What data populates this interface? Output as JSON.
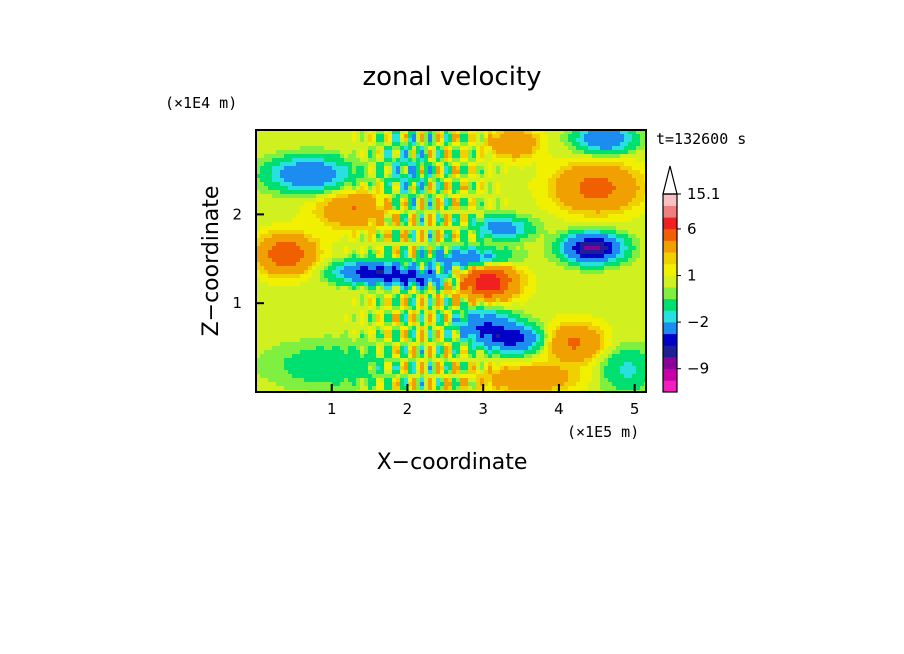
{
  "chart_data": {
    "type": "heatmap",
    "title": "zonal velocity",
    "xlabel": "X−coordinate",
    "ylabel": "Z−coordinate",
    "x_scale_label": "(×1E5 m)",
    "y_scale_label": "(×1E4 m)",
    "time_label": "t=132600 s",
    "xlim": [
      0,
      5.15
    ],
    "ylim": [
      0,
      2.95
    ],
    "x_ticks": [
      1,
      2,
      3,
      4,
      5
    ],
    "x_tick_labels": [
      "1",
      "2",
      "3",
      "4",
      "5"
    ],
    "y_ticks": [
      1,
      2
    ],
    "y_tick_labels": [
      "1",
      "2"
    ],
    "colorbar": {
      "levels": [
        -12,
        -10.5,
        -9,
        -7.5,
        -6,
        -4.5,
        -2,
        -1,
        0,
        0.5,
        1,
        1.5,
        2,
        4,
        6,
        9,
        12,
        15.1
      ],
      "colors": [
        "#f020c0",
        "#c800a8",
        "#8a009a",
        "#1e1e96",
        "#0000c8",
        "#1c8cf0",
        "#28e0e0",
        "#00e070",
        "#80f040",
        "#d0f020",
        "#f0f000",
        "#f0d000",
        "#f0a000",
        "#f06000",
        "#f02020",
        "#f08080",
        "#f8c0c0"
      ],
      "labeled_levels": [
        15.1,
        6,
        1,
        -2,
        -9
      ],
      "labels": [
        "15.1",
        "6",
        "1",
        "−2",
        "−9"
      ],
      "extend": "max"
    },
    "field_features": [
      {
        "kind": "negative jet",
        "x": [
          1.2,
          3.6
        ],
        "z": [
          1.15,
          1.6
        ],
        "min": -7
      },
      {
        "kind": "negative core",
        "x": [
          2.4,
          3.4
        ],
        "z": [
          0.4,
          0.9
        ],
        "min": -8
      },
      {
        "kind": "negative core",
        "x": [
          4.0,
          4.8
        ],
        "z": [
          1.4,
          1.9
        ],
        "min": -10
      },
      {
        "kind": "negative band",
        "x": [
          0.2,
          1.4
        ],
        "z": [
          2.2,
          2.6
        ],
        "min": -6
      },
      {
        "kind": "positive core",
        "x": [
          2.7,
          3.6
        ],
        "z": [
          1.0,
          1.6
        ],
        "max": 8
      },
      {
        "kind": "positive core",
        "x": [
          0.1,
          0.8
        ],
        "z": [
          1.3,
          1.8
        ],
        "max": 6
      }
    ]
  }
}
